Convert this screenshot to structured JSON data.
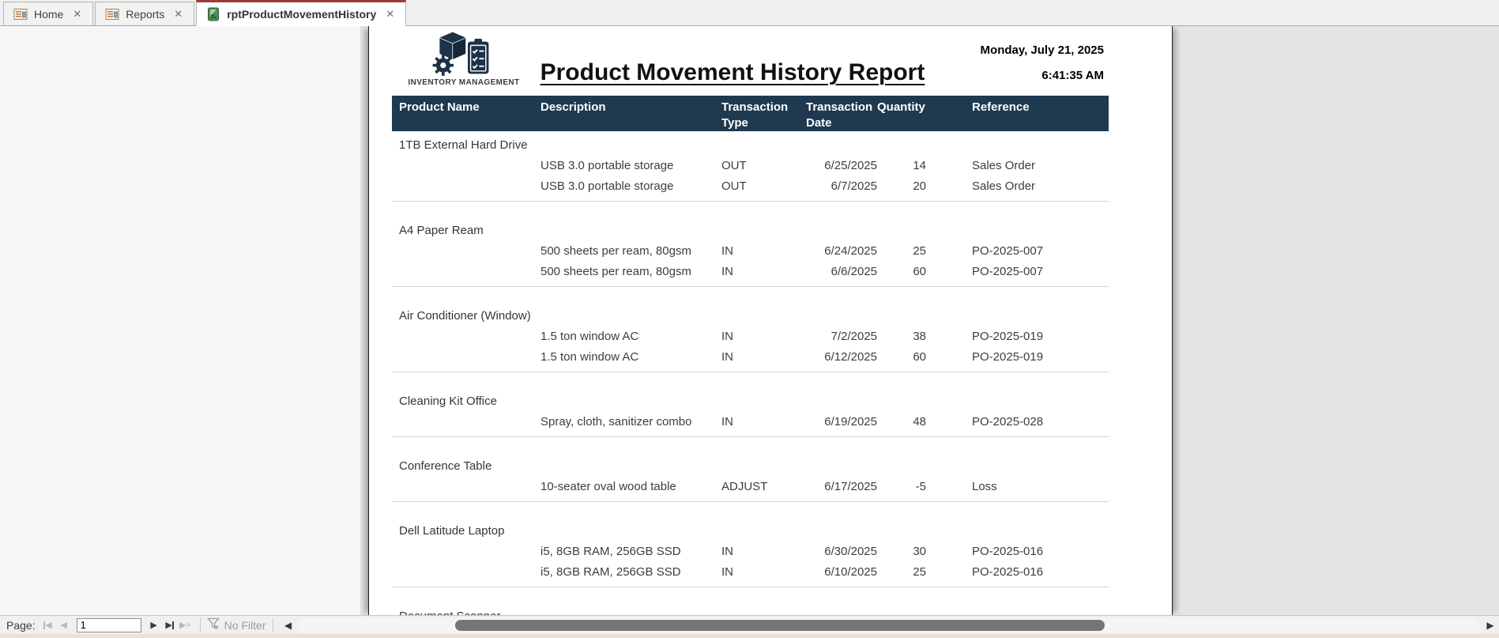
{
  "tabs": [
    {
      "label": "Home",
      "active": false
    },
    {
      "label": "Reports",
      "active": false
    },
    {
      "label": "rptProductMovementHistory",
      "active": true
    }
  ],
  "icons": {
    "close": "✕",
    "nav_first": "◀",
    "nav_prev": "◀",
    "nav_next": "▶",
    "nav_last": "▶",
    "nav_new": "▶",
    "new_star": "✳",
    "scroll_left": "◀",
    "scroll_right": "▶"
  },
  "colors": {
    "header_band": "#1f3a50",
    "active_tab_accent": "#9e3a38",
    "report_icon_green": "#4d8f57"
  },
  "report": {
    "logo_caption": "INVENTORY MANAGEMENT",
    "title": "Product Movement History Report",
    "date": "Monday, July 21, 2025",
    "time": "6:41:35 AM",
    "columns": [
      "Product Name",
      "Description",
      "Transaction Type",
      "Transaction Date",
      "Quantity",
      "Reference"
    ],
    "groups": [
      {
        "product": "1TB External Hard Drive",
        "rows": [
          {
            "description": "USB 3.0 portable storage",
            "type": "OUT",
            "date": "6/25/2025",
            "quantity": "14",
            "reference": "Sales Order"
          },
          {
            "description": "USB 3.0 portable storage",
            "type": "OUT",
            "date": "6/7/2025",
            "quantity": "20",
            "reference": "Sales Order"
          }
        ]
      },
      {
        "product": "A4 Paper Ream",
        "rows": [
          {
            "description": "500 sheets per ream, 80gsm",
            "type": "IN",
            "date": "6/24/2025",
            "quantity": "25",
            "reference": "PO-2025-007"
          },
          {
            "description": "500 sheets per ream, 80gsm",
            "type": "IN",
            "date": "6/6/2025",
            "quantity": "60",
            "reference": "PO-2025-007"
          }
        ]
      },
      {
        "product": "Air Conditioner (Window)",
        "rows": [
          {
            "description": "1.5 ton window AC",
            "type": "IN",
            "date": "7/2/2025",
            "quantity": "38",
            "reference": "PO-2025-019"
          },
          {
            "description": "1.5 ton window AC",
            "type": "IN",
            "date": "6/12/2025",
            "quantity": "60",
            "reference": "PO-2025-019"
          }
        ]
      },
      {
        "product": "Cleaning Kit Office",
        "rows": [
          {
            "description": "Spray, cloth, sanitizer combo",
            "type": "IN",
            "date": "6/19/2025",
            "quantity": "48",
            "reference": "PO-2025-028"
          }
        ]
      },
      {
        "product": "Conference Table",
        "rows": [
          {
            "description": "10-seater oval wood table",
            "type": "ADJUST",
            "date": "6/17/2025",
            "quantity": "-5",
            "reference": "Loss"
          }
        ]
      },
      {
        "product": "Dell Latitude Laptop",
        "rows": [
          {
            "description": "i5, 8GB RAM, 256GB SSD",
            "type": "IN",
            "date": "6/30/2025",
            "quantity": "30",
            "reference": "PO-2025-016"
          },
          {
            "description": "i5, 8GB RAM, 256GB SSD",
            "type": "IN",
            "date": "6/10/2025",
            "quantity": "25",
            "reference": "PO-2025-016"
          }
        ]
      },
      {
        "product": "Document Scanner",
        "rows": []
      }
    ]
  },
  "navbar": {
    "page_label": "Page:",
    "page_value": "1",
    "filter_label": "No Filter"
  }
}
